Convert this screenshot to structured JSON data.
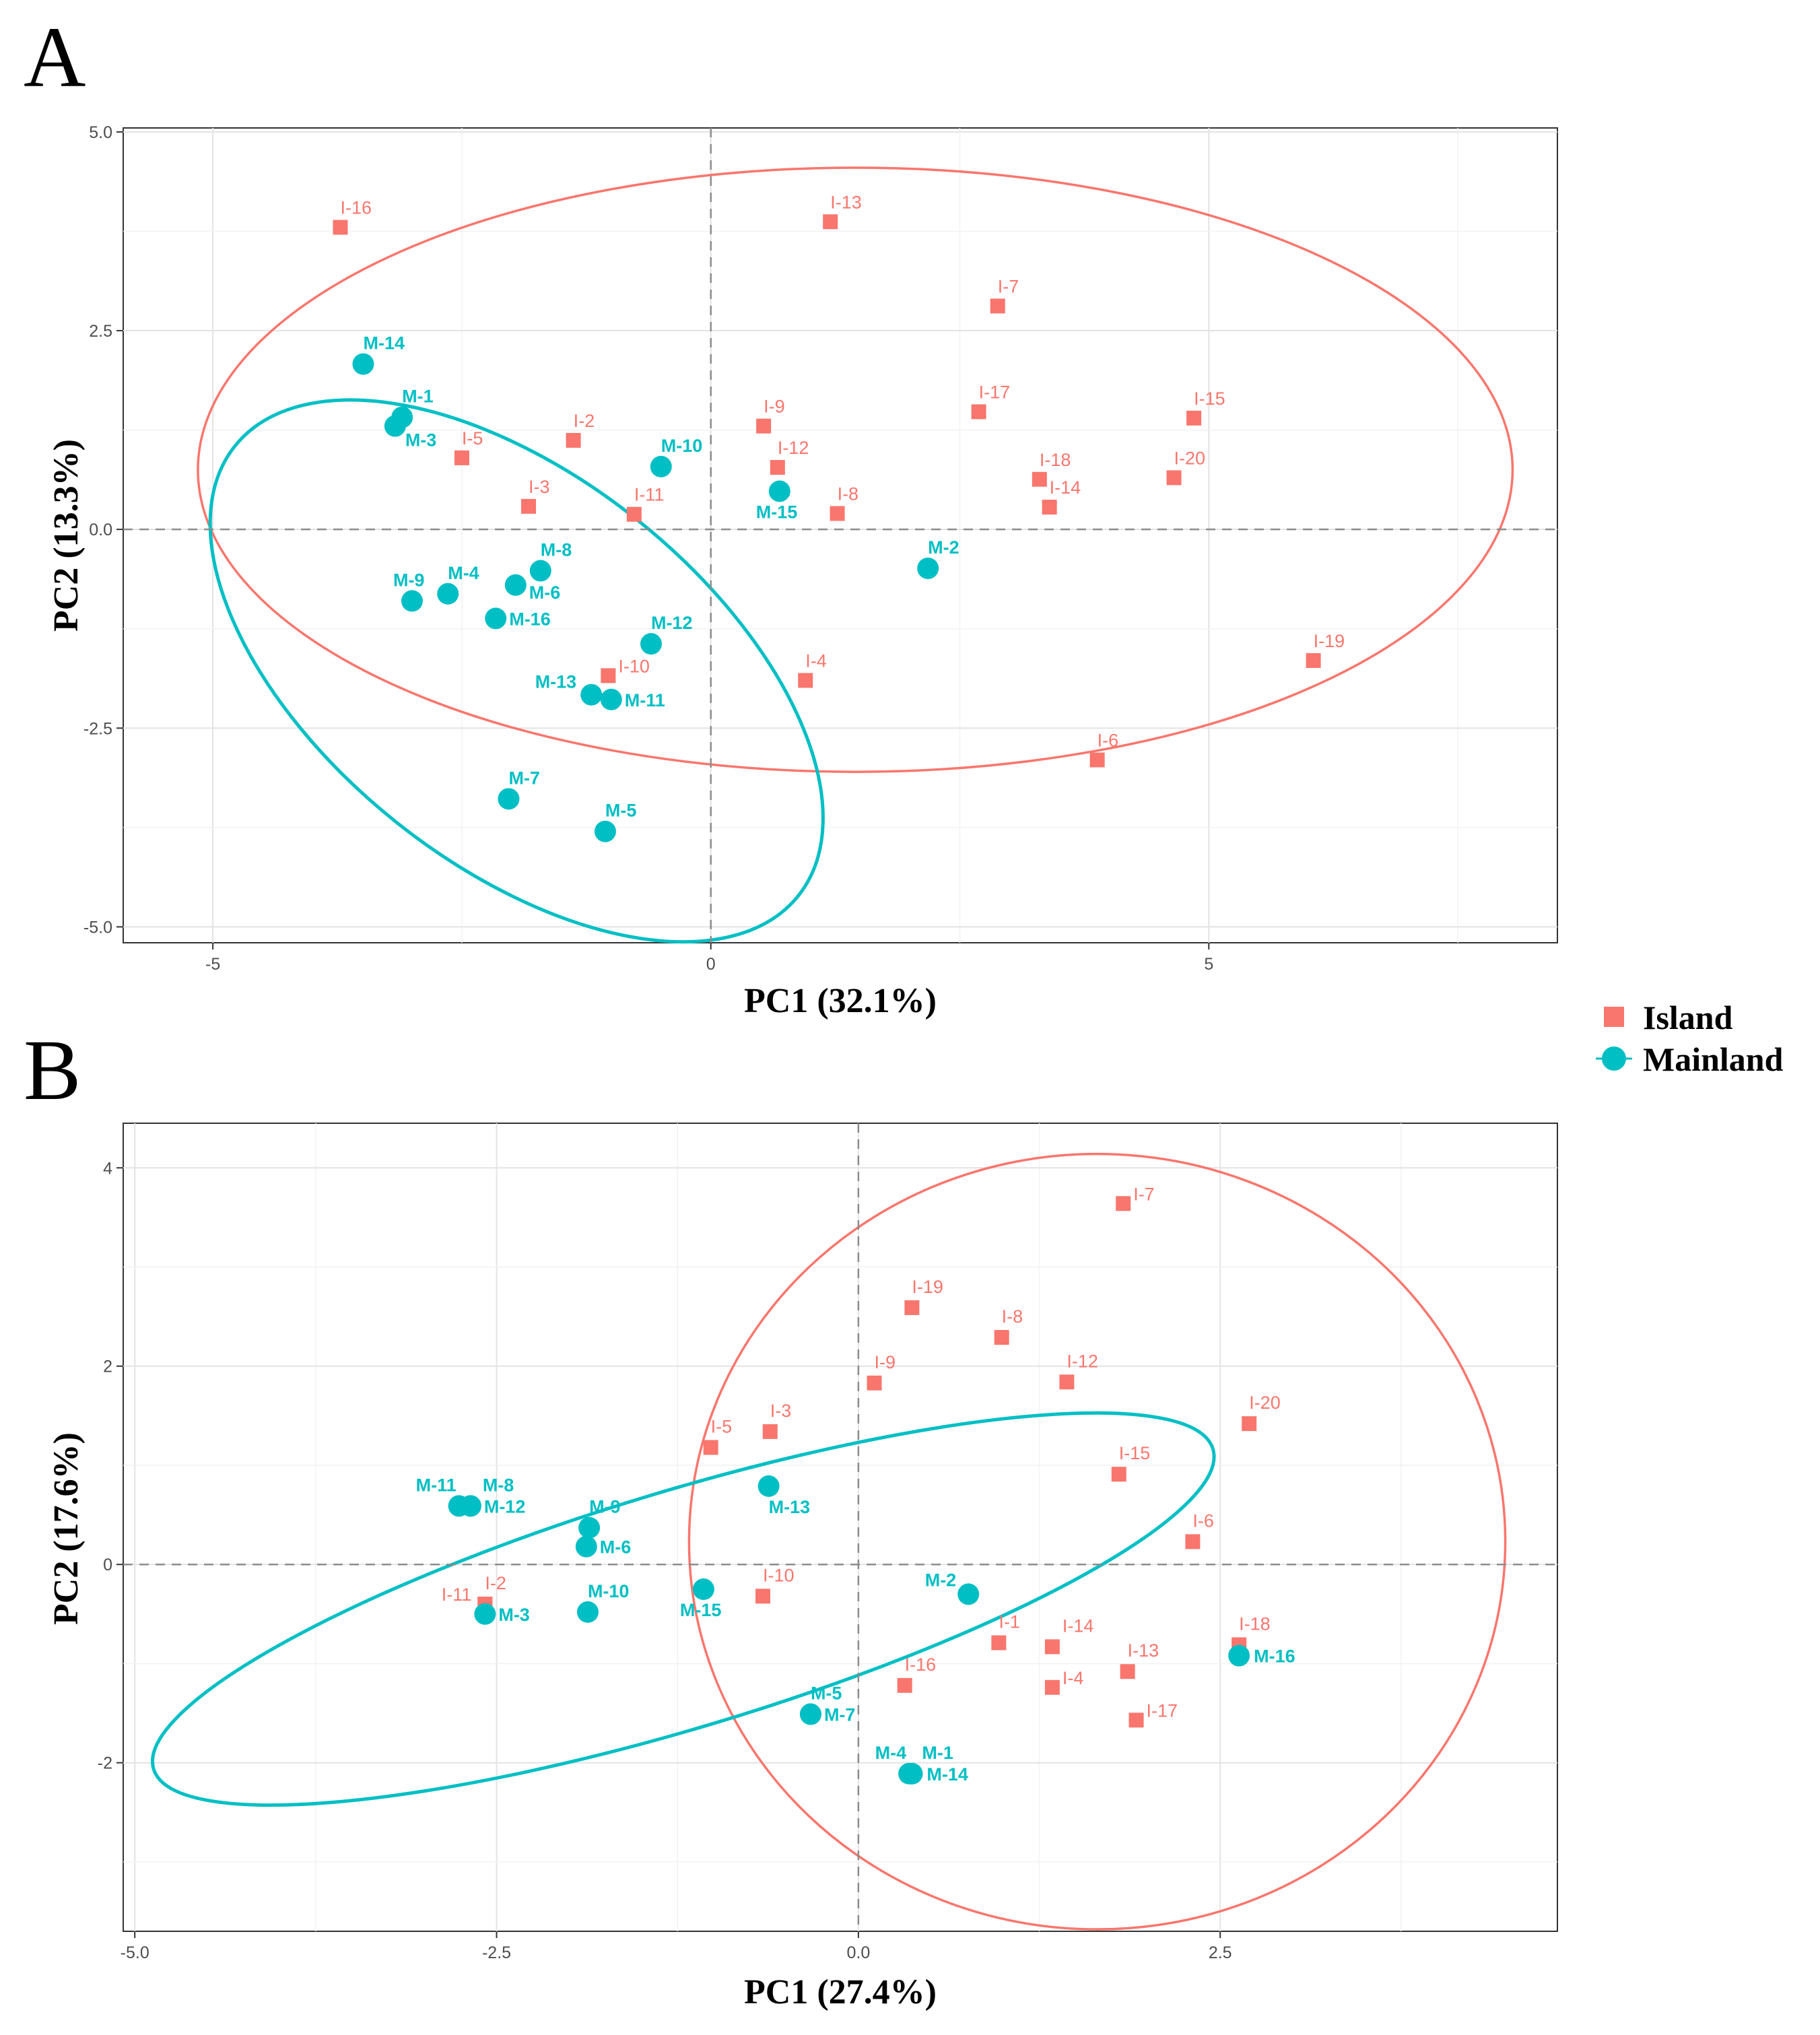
{
  "colors": {
    "island": "#F8766D",
    "mainland": "#00BFC4"
  },
  "legend": {
    "items": [
      {
        "label": "Island",
        "shape": "square",
        "color": "#F8766D"
      },
      {
        "label": "Mainland",
        "shape": "circle",
        "color": "#00BFC4"
      }
    ]
  },
  "chart_data": [
    {
      "panel": "A",
      "type": "scatter",
      "title": "",
      "xlabel": "PC1 (32.1%)",
      "ylabel": "PC2 (13.3%)",
      "xlim": [
        -5.9,
        8.5
      ],
      "ylim": [
        -5.2,
        5.05
      ],
      "xticks": [
        -5,
        0,
        5
      ],
      "xtick_labels": [
        "-5",
        "0",
        "5"
      ],
      "yticks": [
        -5,
        -2.5,
        0,
        2.5,
        5
      ],
      "ytick_labels": [
        "-5.0",
        "-2.5",
        "0.0",
        "2.5",
        "5.0"
      ],
      "grid": true,
      "series": [
        {
          "name": "Island",
          "marker": "square",
          "points": [
            {
              "label": "I-2",
              "x": -1.38,
              "y": 1.12
            },
            {
              "label": "I-3",
              "x": -1.83,
              "y": 0.29
            },
            {
              "label": "I-4",
              "x": 0.95,
              "y": -1.9
            },
            {
              "label": "I-5",
              "x": -2.5,
              "y": 0.9
            },
            {
              "label": "I-6",
              "x": 3.88,
              "y": -2.9
            },
            {
              "label": "I-7",
              "x": 2.88,
              "y": 2.81
            },
            {
              "label": "I-8",
              "x": 1.27,
              "y": 0.2
            },
            {
              "label": "I-9",
              "x": 0.53,
              "y": 1.3
            },
            {
              "label": "I-10",
              "x": -1.03,
              "y": -1.84
            },
            {
              "label": "I-11",
              "x": -0.77,
              "y": 0.19
            },
            {
              "label": "I-12",
              "x": 0.67,
              "y": 0.78
            },
            {
              "label": "I-13",
              "x": 1.2,
              "y": 3.87
            },
            {
              "label": "I-14",
              "x": 3.4,
              "y": 0.28
            },
            {
              "label": "I-15",
              "x": 4.85,
              "y": 1.4
            },
            {
              "label": "I-16",
              "x": -3.72,
              "y": 3.8
            },
            {
              "label": "I-17",
              "x": 2.69,
              "y": 1.48
            },
            {
              "label": "I-18",
              "x": 3.3,
              "y": 0.63
            },
            {
              "label": "I-19",
              "x": 6.05,
              "y": -1.65
            },
            {
              "label": "I-20",
              "x": 4.65,
              "y": 0.65
            }
          ]
        },
        {
          "name": "Mainland",
          "marker": "circle",
          "points": [
            {
              "label": "M-1",
              "x": -3.1,
              "y": 1.41
            },
            {
              "label": "M-2",
              "x": 2.18,
              "y": -0.49
            },
            {
              "label": "M-3",
              "x": -3.17,
              "y": 1.3
            },
            {
              "label": "M-4",
              "x": -2.64,
              "y": -0.81
            },
            {
              "label": "M-5",
              "x": -1.06,
              "y": -3.8
            },
            {
              "label": "M-6",
              "x": -1.96,
              "y": -0.7
            },
            {
              "label": "M-7",
              "x": -2.03,
              "y": -3.39
            },
            {
              "label": "M-8",
              "x": -1.71,
              "y": -0.52
            },
            {
              "label": "M-9",
              "x": -3.0,
              "y": -0.9
            },
            {
              "label": "M-10",
              "x": -0.5,
              "y": 0.79
            },
            {
              "label": "M-11",
              "x": -1.0,
              "y": -2.14
            },
            {
              "label": "M-12",
              "x": -0.6,
              "y": -1.44
            },
            {
              "label": "M-13",
              "x": -1.2,
              "y": -2.08
            },
            {
              "label": "M-14",
              "x": -3.49,
              "y": 2.08
            },
            {
              "label": "M-15",
              "x": 0.69,
              "y": 0.48
            },
            {
              "label": "M-16",
              "x": -2.16,
              "y": -1.12
            }
          ]
        }
      ],
      "ellipses": [
        {
          "group": "Island",
          "center_x": 1.45,
          "center_y": 0.75,
          "semi_axis_x": 6.6,
          "semi_axis_y": 3.8
        },
        {
          "group": "Mainland",
          "center_x": -1.95,
          "center_y": -1.78,
          "rx": 4.0,
          "ry": 2.2,
          "rotation_deg": -45
        }
      ]
    },
    {
      "panel": "B",
      "type": "scatter",
      "title": "",
      "xlabel": "PC1 (27.4%)",
      "ylabel": "PC2 (17.6%)",
      "xlim": [
        -5.08,
        4.83
      ],
      "ylim": [
        -3.7,
        4.45
      ],
      "xticks": [
        -5,
        -2.5,
        0,
        2.5
      ],
      "xtick_labels": [
        "-5.0",
        "-2.5",
        "0.0",
        "2.5"
      ],
      "yticks": [
        -2,
        0,
        2,
        4
      ],
      "ytick_labels": [
        "-2",
        "0",
        "2",
        "4"
      ],
      "grid": true,
      "series": [
        {
          "name": "Island",
          "marker": "square",
          "points": [
            {
              "label": "I-1",
              "x": 0.97,
              "y": -0.79
            },
            {
              "label": "I-2",
              "x": -2.58,
              "y": -0.4
            },
            {
              "label": "I-3",
              "x": -0.61,
              "y": 1.34
            },
            {
              "label": "I-4",
              "x": 1.34,
              "y": -1.24
            },
            {
              "label": "I-5",
              "x": -1.02,
              "y": 1.18
            },
            {
              "label": "I-6",
              "x": 2.31,
              "y": 0.23
            },
            {
              "label": "I-7",
              "x": 1.83,
              "y": 3.64
            },
            {
              "label": "I-8",
              "x": 0.99,
              "y": 2.29
            },
            {
              "label": "I-9",
              "x": 0.11,
              "y": 1.83
            },
            {
              "label": "I-10",
              "x": -0.66,
              "y": -0.32
            },
            {
              "label": "I-11",
              "x": -2.58,
              "y": -0.4
            },
            {
              "label": "I-12",
              "x": 1.44,
              "y": 1.84
            },
            {
              "label": "I-13",
              "x": 1.86,
              "y": -1.08
            },
            {
              "label": "I-14",
              "x": 1.34,
              "y": -0.83
            },
            {
              "label": "I-15",
              "x": 1.8,
              "y": 0.91
            },
            {
              "label": "I-16",
              "x": 0.32,
              "y": -1.22
            },
            {
              "label": "I-17",
              "x": 1.92,
              "y": -1.57
            },
            {
              "label": "I-18",
              "x": 2.63,
              "y": -0.81
            },
            {
              "label": "I-19",
              "x": 0.37,
              "y": 2.59
            },
            {
              "label": "I-20",
              "x": 2.7,
              "y": 1.42
            }
          ]
        },
        {
          "name": "Mainland",
          "marker": "circle",
          "points": [
            {
              "label": "M-1",
              "x": 0.37,
              "y": -2.11
            },
            {
              "label": "M-2",
              "x": 0.76,
              "y": -0.3
            },
            {
              "label": "M-3",
              "x": -2.58,
              "y": -0.5
            },
            {
              "label": "M-4",
              "x": 0.35,
              "y": -2.11
            },
            {
              "label": "M-5",
              "x": -0.33,
              "y": -1.51
            },
            {
              "label": "M-6",
              "x": -1.88,
              "y": 0.18
            },
            {
              "label": "M-7",
              "x": -0.33,
              "y": -1.51
            },
            {
              "label": "M-8",
              "x": -2.68,
              "y": 0.59
            },
            {
              "label": "M-9",
              "x": -1.86,
              "y": 0.37
            },
            {
              "label": "M-10",
              "x": -1.87,
              "y": -0.48
            },
            {
              "label": "M-11",
              "x": -2.76,
              "y": 0.59
            },
            {
              "label": "M-12",
              "x": -2.68,
              "y": 0.59
            },
            {
              "label": "M-13",
              "x": -0.62,
              "y": 0.79
            },
            {
              "label": "M-14",
              "x": 0.37,
              "y": -2.11
            },
            {
              "label": "M-15",
              "x": -1.07,
              "y": -0.25
            },
            {
              "label": "M-16",
              "x": 2.63,
              "y": -0.92
            }
          ]
        }
      ],
      "ellipses": [
        {
          "group": "Island",
          "center_x": 1.65,
          "center_y": 0.23,
          "semi_axis_x": 2.82,
          "semi_axis_y": 3.91
        },
        {
          "group": "Mainland",
          "center_x": -1.21,
          "center_y": -0.45,
          "rx": 4.0,
          "ry": 1.14,
          "rotation_deg": 23.8
        }
      ]
    }
  ]
}
